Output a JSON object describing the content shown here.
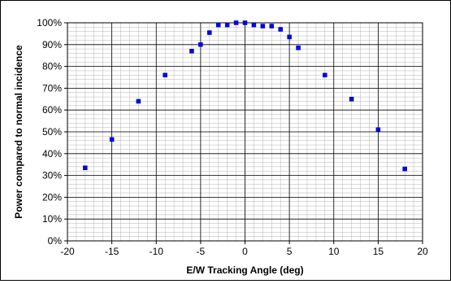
{
  "chart_data": {
    "type": "scatter",
    "title": "",
    "xlabel": "E/W Tracking Angle (deg)",
    "ylabel": "Power compared to normal incidence",
    "xlim": [
      -20,
      20
    ],
    "ylim": [
      0,
      100
    ],
    "x_ticks": [
      -20,
      -15,
      -10,
      -5,
      0,
      5,
      10,
      15,
      20
    ],
    "x_tick_labels": [
      "-20",
      "-15",
      "-10",
      "-5",
      "0",
      "5",
      "10",
      "15",
      "20"
    ],
    "y_ticks": [
      0,
      10,
      20,
      30,
      40,
      50,
      60,
      70,
      80,
      90,
      100
    ],
    "y_tick_labels": [
      "0%",
      "10%",
      "20%",
      "30%",
      "40%",
      "50%",
      "60%",
      "70%",
      "80%",
      "90%",
      "100%"
    ],
    "grid": true,
    "legend": "none",
    "marker_color": "#0000ff",
    "series": [
      {
        "x": [
          -18,
          -15,
          -12,
          -9,
          -6,
          -5,
          -4,
          -3,
          -2,
          -1,
          0,
          1,
          2,
          3,
          4,
          5,
          6,
          9,
          12,
          15,
          18
        ],
        "y": [
          33.5,
          46.5,
          64,
          76,
          87,
          90,
          95.5,
          99,
          99,
          100,
          100,
          99,
          98.5,
          98.5,
          97,
          93.5,
          88.5,
          76,
          65,
          51,
          33
        ]
      }
    ]
  }
}
